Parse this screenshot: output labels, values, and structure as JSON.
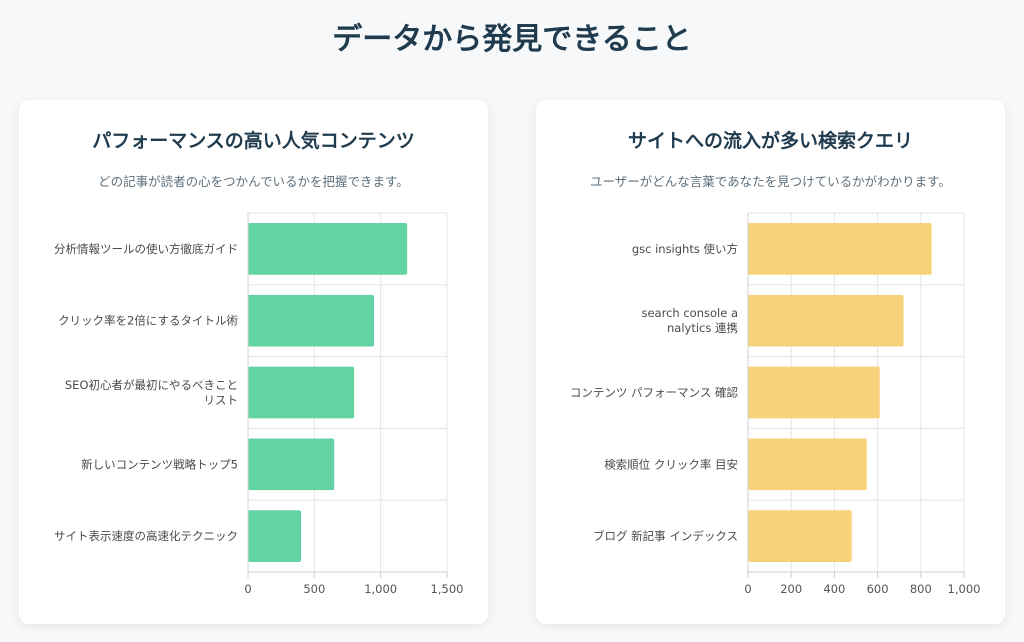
{
  "page": {
    "title": "データから発見できること"
  },
  "cards": [
    {
      "title": "パフォーマンスの高い人気コンテンツ",
      "subtitle": "どの記事が読者の心をつかんでいるかを把握できます。"
    },
    {
      "title": "サイトへの流入が多い検索クエリ",
      "subtitle": "ユーザーがどんな言葉であなたを見つけているかがわかります。"
    }
  ],
  "chart_data": [
    {
      "type": "bar",
      "orientation": "horizontal",
      "categories": [
        [
          "分析情報ツールの使い方徹底ガイド"
        ],
        [
          "クリック率を2倍にするタイトル術"
        ],
        [
          "SEO初心者が最初にやるべきこと",
          "リスト"
        ],
        [
          "新しいコンテンツ戦略トップ5"
        ],
        [
          "サイト表示速度の高速化テクニック"
        ]
      ],
      "values": [
        1200,
        950,
        800,
        650,
        400
      ],
      "xlim": [
        0,
        1500
      ],
      "ticks": [
        0,
        500,
        1000,
        1500
      ],
      "tick_labels": [
        "0",
        "500",
        "1,000",
        "1,500"
      ],
      "color": "#63d3a3",
      "grid": true
    },
    {
      "type": "bar",
      "orientation": "horizontal",
      "categories": [
        [
          "gsc insights 使い方"
        ],
        [
          "search console a",
          "nalytics 連携"
        ],
        [
          "コンテンツ パフォーマンス 確認"
        ],
        [
          "検索順位 クリック率 目安"
        ],
        [
          "ブログ 新記事 インデックス"
        ]
      ],
      "values": [
        850,
        720,
        610,
        550,
        480
      ],
      "xlim": [
        0,
        1000
      ],
      "ticks": [
        0,
        200,
        400,
        600,
        800,
        1000
      ],
      "tick_labels": [
        "0",
        "200",
        "400",
        "600",
        "800",
        "1,000"
      ],
      "color": "#f7d27a",
      "grid": true
    }
  ]
}
